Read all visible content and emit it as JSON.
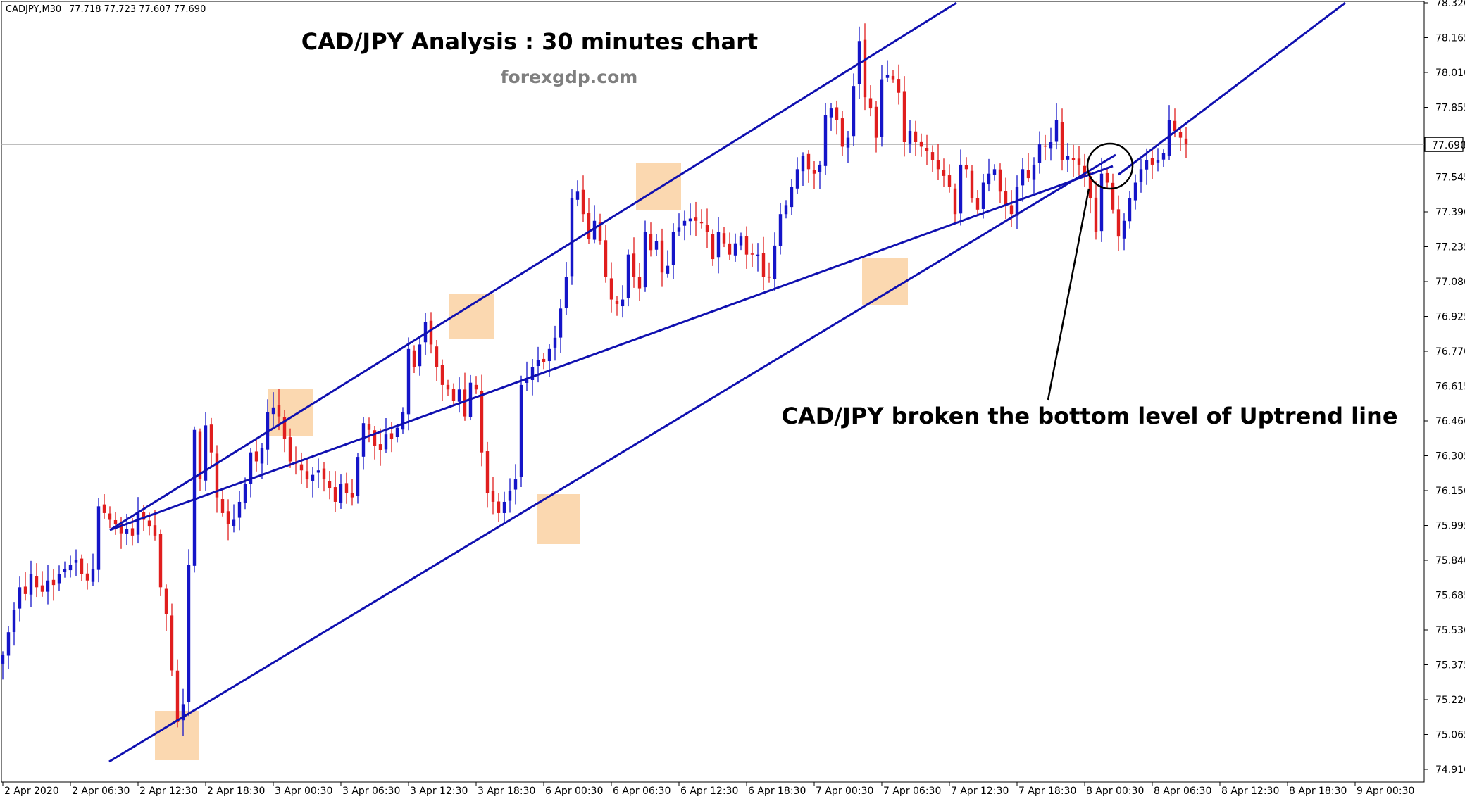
{
  "header": {
    "symbol_info": "CADJPY,M30",
    "ohlc": "77.718 77.723 77.607 77.690"
  },
  "chart_data": {
    "type": "candlestick",
    "symbol": "CADJPY",
    "timeframe": "M30",
    "title": "CAD/JPY Analysis : 30 minutes chart",
    "subtitle": "forexgdp.com",
    "annotation": "CAD/JPY broken the bottom level of Uptrend line",
    "ylim": [
      74.88,
      78.32
    ],
    "y_ticks": [
      "78.320",
      "78.165",
      "78.010",
      "77.855",
      "77.690",
      "77.545",
      "77.390",
      "77.235",
      "77.080",
      "76.925",
      "76.770",
      "76.615",
      "76.460",
      "76.305",
      "76.150",
      "75.995",
      "75.840",
      "75.685",
      "75.530",
      "75.375",
      "75.220",
      "75.065",
      "74.910"
    ],
    "current_price": 77.69,
    "current_price_label": "77.690",
    "x_ticks": [
      "2 Apr 2020",
      "2 Apr 06:30",
      "2 Apr 12:30",
      "2 Apr 18:30",
      "3 Apr 00:30",
      "3 Apr 06:30",
      "3 Apr 12:30",
      "3 Apr 18:30",
      "6 Apr 00:30",
      "6 Apr 06:30",
      "6 Apr 12:30",
      "6 Apr 18:30",
      "7 Apr 00:30",
      "7 Apr 06:30",
      "7 Apr 12:30",
      "7 Apr 18:30",
      "8 Apr 00:30",
      "8 Apr 06:30",
      "8 Apr 12:30",
      "8 Apr 18:30",
      "9 Apr 00:30"
    ],
    "bars_per_tick": 12,
    "closes": [
      75.42,
      75.52,
      75.62,
      75.72,
      75.69,
      75.78,
      75.72,
      75.7,
      75.75,
      75.73,
      75.78,
      75.8,
      75.82,
      75.84,
      75.78,
      75.75,
      75.8,
      76.08,
      76.05,
      76.02,
      76.0,
      75.96,
      75.98,
      75.95,
      76.05,
      76.02,
      75.99,
      75.95,
      75.72,
      75.6,
      75.35,
      75.12,
      75.2,
      75.82,
      76.42,
      76.2,
      76.44,
      76.32,
      76.12,
      76.05,
      76.0,
      76.02,
      76.1,
      76.18,
      76.32,
      76.28,
      76.34,
      76.5,
      76.52,
      76.48,
      76.38,
      76.28,
      76.27,
      76.24,
      76.2,
      76.22,
      76.24,
      76.2,
      76.16,
      76.1,
      76.18,
      76.14,
      76.12,
      76.3,
      76.45,
      76.42,
      76.35,
      76.33,
      76.4,
      76.38,
      76.43,
      76.5,
      76.78,
      76.7,
      76.8,
      76.9,
      76.8,
      76.7,
      76.62,
      76.6,
      76.55,
      76.6,
      76.48,
      76.63,
      76.6,
      76.32,
      76.14,
      76.1,
      76.05,
      76.1,
      76.15,
      76.2,
      76.62,
      76.65,
      76.7,
      76.73,
      76.72,
      76.78,
      76.83,
      76.96,
      77.1,
      77.45,
      77.48,
      77.38,
      77.27,
      77.35,
      77.26,
      77.1,
      77.0,
      76.98,
      77.0,
      77.2,
      77.1,
      77.05,
      77.3,
      77.22,
      77.26,
      77.12,
      77.15,
      77.3,
      77.32,
      77.35,
      77.36,
      77.35,
      77.34,
      77.3,
      77.18,
      77.3,
      77.25,
      77.2,
      77.25,
      77.28,
      77.2,
      77.2,
      77.2,
      77.1,
      77.1,
      77.24,
      77.38,
      77.42,
      77.5,
      77.58,
      77.64,
      77.58,
      77.56,
      77.6,
      77.82,
      77.85,
      77.8,
      77.68,
      77.72,
      77.95,
      78.15,
      77.9,
      77.85,
      77.72,
      77.98,
      78.0,
      77.98,
      77.92,
      77.7,
      77.75,
      77.7,
      77.68,
      77.66,
      77.62,
      77.58,
      77.55,
      77.5,
      77.38,
      77.6,
      77.58,
      77.45,
      77.4,
      77.52,
      77.56,
      77.58,
      77.48,
      77.42,
      77.38,
      77.5,
      77.58,
      77.54,
      77.6,
      77.69,
      77.68,
      77.7,
      77.8,
      77.62,
      77.64,
      77.62,
      77.6,
      77.55,
      77.45,
      77.3,
      77.56,
      77.52,
      77.4,
      77.28,
      77.35,
      77.45,
      77.52,
      77.58,
      77.62,
      77.6,
      77.62,
      77.65,
      77.8,
      77.75,
      77.72,
      77.69
    ]
  }
}
